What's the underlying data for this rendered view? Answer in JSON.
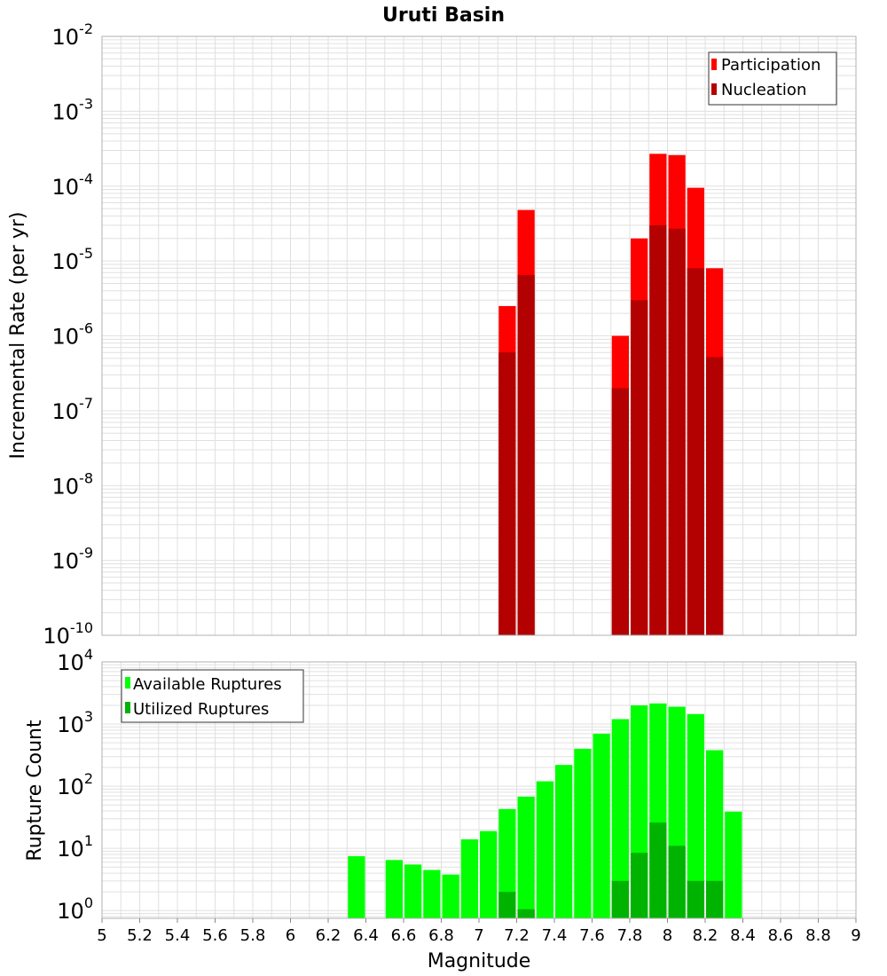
{
  "colors": {
    "participation": "#ff0000",
    "nucleation": "#b30000",
    "available": "#00ff00",
    "utilized": "#00b300",
    "grid": "#e0e0e0",
    "frame": "#b0b0b0"
  },
  "chart_data": [
    {
      "type": "bar",
      "title": "Uruti Basin",
      "ylabel": "Incremental Rate (per yr)",
      "xlabel": "",
      "yscale": "log",
      "ylim": [
        1e-10,
        0.01
      ],
      "xlim": [
        5,
        9
      ],
      "y_tick_exponents": [
        "-10",
        "-9",
        "-8",
        "-7",
        "-6",
        "-5",
        "-4",
        "-3",
        "-2"
      ],
      "y_tick_base": "10",
      "grid": true,
      "legend_position": "top-right",
      "bin_width": 0.1,
      "x": [
        7.15,
        7.25,
        7.75,
        7.85,
        7.95,
        8.05,
        8.15,
        8.25
      ],
      "series": [
        {
          "name": "Participation",
          "values": [
            2.5e-06,
            4.8e-05,
            1e-06,
            2e-05,
            0.00027,
            0.00026,
            9.5e-05,
            8e-06
          ]
        },
        {
          "name": "Nucleation",
          "values": [
            6e-07,
            6.5e-06,
            2e-07,
            3e-06,
            3e-05,
            2.7e-05,
            8e-06,
            5.2e-07
          ]
        }
      ]
    },
    {
      "type": "bar",
      "title": "",
      "ylabel": "Rupture Count",
      "xlabel": "Magnitude",
      "yscale": "log",
      "ylim": [
        0.75,
        10000
      ],
      "xlim": [
        5,
        9
      ],
      "x_ticks": [
        "5",
        "5.2",
        "5.4",
        "5.6",
        "5.8",
        "6",
        "6.2",
        "6.4",
        "6.6",
        "6.8",
        "7",
        "7.2",
        "7.4",
        "7.6",
        "7.8",
        "8",
        "8.2",
        "8.4",
        "8.6",
        "8.8",
        "9"
      ],
      "y_tick_exponents": [
        "0",
        "1",
        "2",
        "3",
        "4"
      ],
      "y_tick_base": "10",
      "grid": true,
      "legend_position": "top-left",
      "bin_width": 0.1,
      "x": [
        6.35,
        6.55,
        6.65,
        6.75,
        6.85,
        6.95,
        7.05,
        7.15,
        7.25,
        7.35,
        7.45,
        7.55,
        7.65,
        7.75,
        7.85,
        7.95,
        8.05,
        8.15,
        8.25,
        8.35
      ],
      "series": [
        {
          "name": "Available Ruptures",
          "values": [
            7.5,
            6.5,
            5.5,
            4.5,
            3.8,
            14,
            19,
            43,
            68,
            120,
            220,
            400,
            700,
            1200,
            2000,
            2150,
            1900,
            1450,
            380,
            39
          ]
        },
        {
          "name": "Utilized Ruptures",
          "values": [
            0,
            0,
            0,
            0,
            0,
            0,
            0,
            2,
            1.05,
            0,
            0,
            0,
            0,
            3,
            8.5,
            26,
            11,
            3,
            3,
            0
          ]
        }
      ]
    }
  ]
}
